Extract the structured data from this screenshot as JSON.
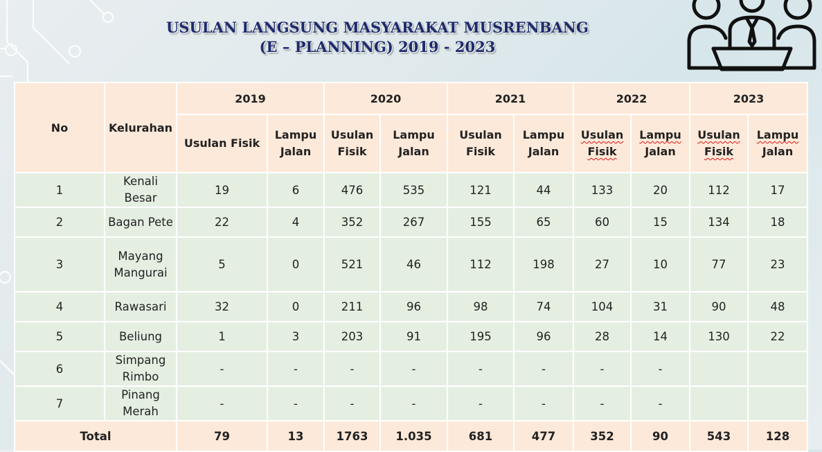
{
  "title_line1": "USULAN LANGSUNG MASYARAKAT MUSRENBANG",
  "title_line2": "(E – PLANNING) 2019 - 2023",
  "header": {
    "no": "No",
    "kelurahan": "Kelurahan",
    "years": [
      "2019",
      "2020",
      "2021",
      "2022",
      "2023"
    ],
    "sub": {
      "usulan_fisik_one_line": "Usulan Fisik",
      "usulan": "Usulan",
      "fisik": "Fisik",
      "lampu": "Lampu",
      "jalan": "Jalan"
    }
  },
  "rows": [
    {
      "no": "1",
      "kel1": "Kenali Besar",
      "kel2": "",
      "v": [
        "19",
        "6",
        "476",
        "535",
        "121",
        "44",
        "133",
        "20",
        "112",
        "17"
      ]
    },
    {
      "no": "2",
      "kel1": "Bagan Pete",
      "kel2": "",
      "v": [
        "22",
        "4",
        "352",
        "267",
        "155",
        "65",
        "60",
        "15",
        "134",
        "18"
      ]
    },
    {
      "no": "3",
      "kel1": "Mayang",
      "kel2": "Mangurai",
      "v": [
        "5",
        "0",
        "521",
        "46",
        "112",
        "198",
        "27",
        "10",
        "77",
        "23"
      ]
    },
    {
      "no": "4",
      "kel1": "Rawasari",
      "kel2": "",
      "v": [
        "32",
        "0",
        "211",
        "96",
        "98",
        "74",
        "104",
        "31",
        "90",
        "48"
      ]
    },
    {
      "no": "5",
      "kel1": "Beliung",
      "kel2": "",
      "v": [
        "1",
        "3",
        "203",
        "91",
        "195",
        "96",
        "28",
        "14",
        "130",
        "22"
      ]
    },
    {
      "no": "6",
      "kel1": "Simpang",
      "kel2": "Rimbo",
      "v": [
        "-",
        "-",
        "-",
        "-",
        "-",
        "-",
        "-",
        "-",
        "",
        ""
      ]
    },
    {
      "no": "7",
      "kel1": "Pinang",
      "kel2": "Merah",
      "v": [
        "-",
        "-",
        "-",
        "-",
        "-",
        "-",
        "-",
        "-",
        "",
        ""
      ]
    }
  ],
  "total": {
    "label": "Total",
    "v": [
      "79",
      "13",
      "1763",
      "1.035",
      "681",
      "477",
      "352",
      "90",
      "543",
      "128"
    ]
  }
}
